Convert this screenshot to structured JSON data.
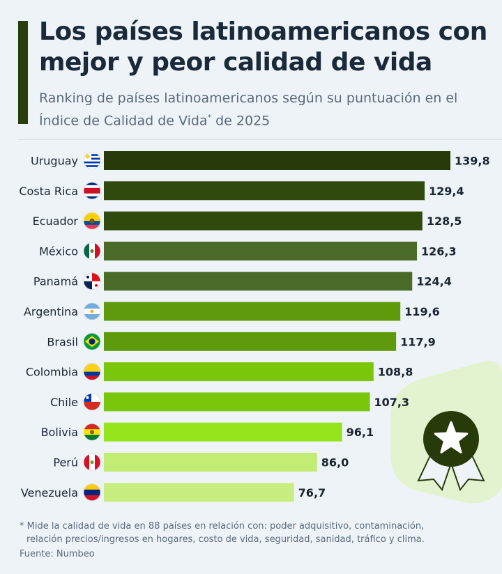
{
  "header": {
    "title": "Los países latinoamericanos con mejor y peor calidad de vida",
    "subtitle_main": "Ranking de países latinoamericanos según su puntuación en el Índice de Calidad de Vida",
    "subtitle_mark": "*",
    "subtitle_tail": " de 2025"
  },
  "chart_data": {
    "type": "bar",
    "orientation": "horizontal",
    "title": "Los países latinoamericanos con mejor y peor calidad de vida",
    "categories": [
      "Uruguay",
      "Costa Rica",
      "Ecuador",
      "México",
      "Panamá",
      "Argentina",
      "Brasil",
      "Colombia",
      "Chile",
      "Bolivia",
      "Perú",
      "Venezuela"
    ],
    "values": [
      139.8,
      129.4,
      128.5,
      126.3,
      124.4,
      119.6,
      117.9,
      108.8,
      107.3,
      96.1,
      86.0,
      76.7
    ],
    "value_labels": [
      "139,8",
      "129,4",
      "128,5",
      "126,3",
      "124,4",
      "119,6",
      "117,9",
      "108,8",
      "107,3",
      "96,1",
      "86,0",
      "76,7"
    ],
    "bar_colors": [
      "#263a0a",
      "#2f4a0c",
      "#2f4a0c",
      "#4a6a28",
      "#4a6a28",
      "#5f9a0c",
      "#5f9a0c",
      "#7ac60a",
      "#7ac60a",
      "#94e41c",
      "#c2ec74",
      "#c8ee82"
    ],
    "flags": [
      "uruguay-flag-icon",
      "costa-rica-flag-icon",
      "ecuador-flag-icon",
      "mexico-flag-icon",
      "panama-flag-icon",
      "argentina-flag-icon",
      "brasil-flag-icon",
      "colombia-flag-icon",
      "chile-flag-icon",
      "bolivia-flag-icon",
      "peru-flag-icon",
      "venezuela-flag-icon"
    ],
    "xlim": [
      0,
      140
    ],
    "grid": false,
    "legend": "none"
  },
  "footnote": {
    "mark": "*",
    "line1": " Mide la calidad de vida en 88 países en relación con: poder adquisitivo, contaminación,",
    "line2": "relación precios/ingresos en hogares, costo de vida, seguridad, sanidad, tráfico y clima."
  },
  "source": "Fuente: Numbeo",
  "decoration": {
    "icon": "award-badge-icon",
    "accent": "#2a3d0c",
    "tint": "#e0f2c8"
  }
}
